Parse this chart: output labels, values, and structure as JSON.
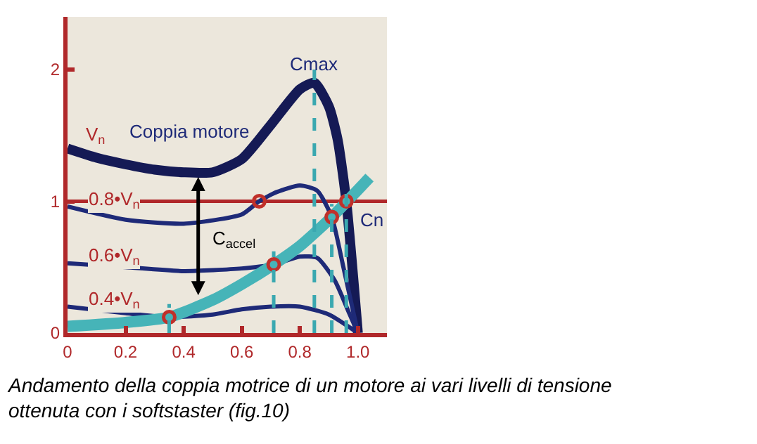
{
  "chart_data": {
    "type": "line",
    "annotations": [
      "Coppia motore",
      "C$_{accel}$",
      "Andamento della coppia motrice di un motore ai vari livelli di tensione ottenuta con i softstaster (fig.10)"
    ],
    "series": [
      {
        "name": "V$_{n}$",
        "color": "#151a55",
        "x": [
          0,
          0.1,
          0.2,
          0.3,
          0.4,
          0.5,
          0.6,
          0.7,
          0.8,
          0.85,
          0.9,
          0.93,
          0.96,
          1.0
        ],
        "values": [
          1.4,
          1.33,
          1.28,
          1.24,
          1.22,
          1.22,
          1.32,
          1.58,
          1.85,
          1.9,
          1.72,
          1.47,
          1.0,
          0
        ]
      },
      {
        "name": "0.8•V$_{n}$",
        "color": "#1e2a78",
        "x": [
          0,
          0.2,
          0.4,
          0.6,
          0.66,
          0.72,
          0.8,
          0.86,
          0.91,
          0.95,
          1.0
        ],
        "values": [
          0.96,
          0.86,
          0.83,
          0.9,
          1.0,
          1.07,
          1.12,
          1.08,
          0.88,
          0.5,
          0
        ]
      },
      {
        "name": "0.6•V$_{n}$",
        "color": "#1e2a78",
        "x": [
          0,
          0.2,
          0.4,
          0.6,
          0.71,
          0.8,
          0.86,
          0.92,
          0.97,
          1.0
        ],
        "values": [
          0.53,
          0.5,
          0.47,
          0.49,
          0.52,
          0.58,
          0.57,
          0.4,
          0.15,
          0
        ]
      },
      {
        "name": "0.4•V$_{n}$",
        "color": "#1e2a78",
        "x": [
          0,
          0.2,
          0.35,
          0.5,
          0.6,
          0.7,
          0.8,
          0.9,
          1.0
        ],
        "values": [
          0.2,
          0.15,
          0.12,
          0.14,
          0.18,
          0.2,
          0.2,
          0.14,
          0
        ]
      },
      {
        "color": "#46b4b8",
        "x": [
          0,
          0.2,
          0.35,
          0.5,
          0.6,
          0.71,
          0.8,
          0.91,
          1.04
        ],
        "values": [
          0.05,
          0.08,
          0.12,
          0.25,
          0.37,
          0.52,
          0.66,
          0.88,
          1.18
        ]
      },
      {
        "type": "scatter",
        "marker": "circle",
        "color": "#c0302a",
        "x": [
          0.35,
          0.66,
          0.71,
          0.91,
          0.96
        ],
        "values": [
          0.12,
          1.0,
          0.52,
          0.88,
          1.0
        ]
      }
    ],
    "ref_lines": [
      {
        "axis": "y",
        "value": 1,
        "label": "Cn",
        "color": "#b0282a",
        "line_style": "solid"
      },
      {
        "axis": "x",
        "value": 0.35,
        "color": "#3aa8b0",
        "line_style": "dashed"
      },
      {
        "axis": "x",
        "value": 0.71,
        "color": "#3aa8b0",
        "line_style": "dashed"
      },
      {
        "axis": "x",
        "value": 0.85,
        "label": "Cmax",
        "color": "#3aa8b0",
        "line_style": "dashed"
      },
      {
        "axis": "x",
        "value": 0.91,
        "color": "#3aa8b0",
        "line_style": "dashed"
      },
      {
        "axis": "x",
        "value": 0.96,
        "color": "#3aa8b0",
        "line_style": "dashed"
      }
    ],
    "xlim": [
      0,
      1.1
    ],
    "ylim": [
      0,
      2.4
    ],
    "xticks": [
      0,
      {
        "value": 0.2,
        "label": "0.2"
      },
      {
        "value": 0.4,
        "label": "0.4"
      },
      {
        "value": 0.6,
        "label": "0.6"
      },
      {
        "value": 0.8,
        "label": "0.8"
      },
      {
        "value": 1.0,
        "label": "1.0"
      }
    ],
    "yticks": [
      0,
      1,
      2
    ],
    "grid": false,
    "legend": false,
    "line_style": "solid",
    "marker": "none"
  }
}
